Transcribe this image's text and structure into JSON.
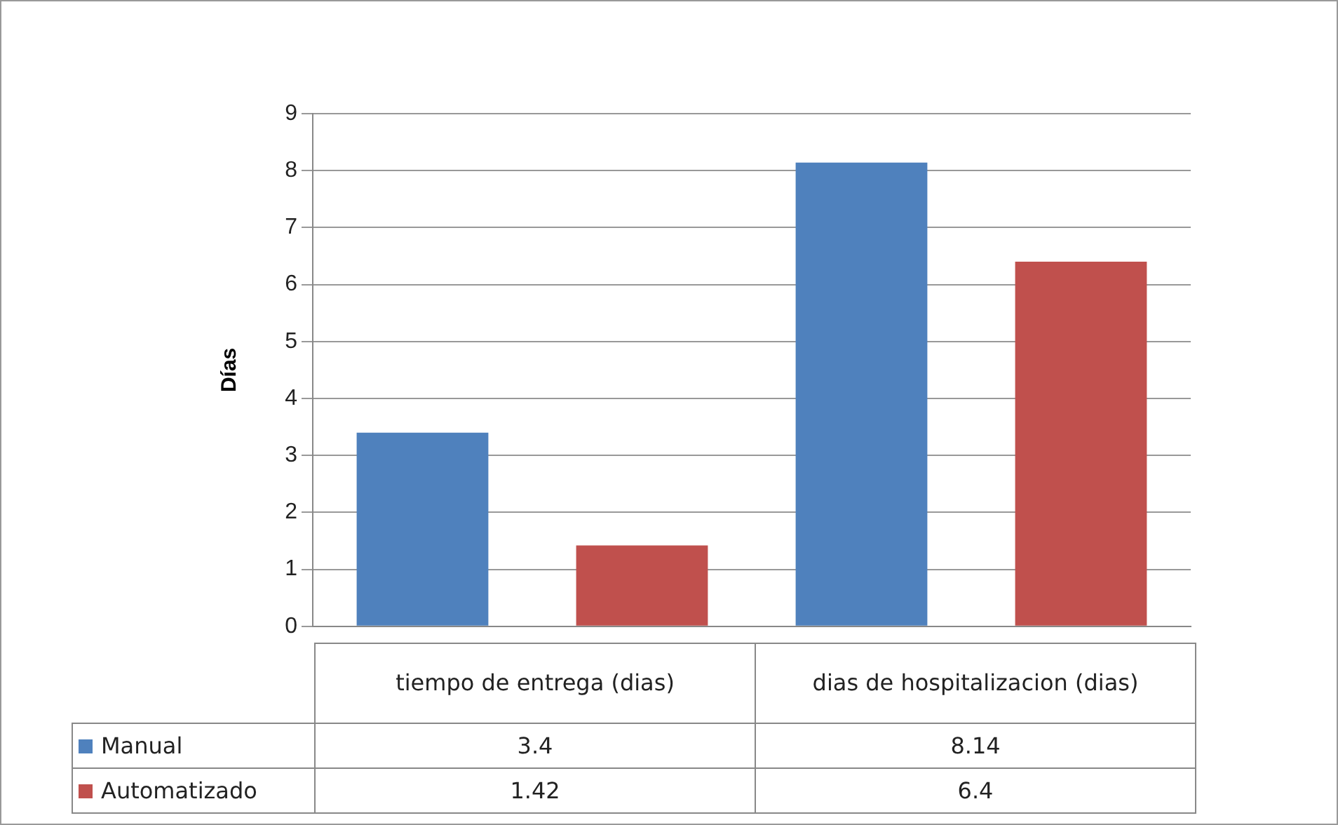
{
  "chart_data": {
    "type": "bar",
    "ylabel": "Días",
    "categories": [
      "tiempo de entrega (dias)",
      "dias de hospitalizacion (dias)"
    ],
    "series": [
      {
        "name": "Manual",
        "color": "#4f81bd",
        "values": [
          3.4,
          8.14
        ]
      },
      {
        "name": "Automatizado",
        "color": "#c0504d",
        "values": [
          1.42,
          6.4
        ]
      }
    ],
    "ylim": [
      0,
      9
    ],
    "yticks": [
      0,
      1,
      2,
      3,
      4,
      5,
      6,
      7,
      8,
      9
    ],
    "grid": "y",
    "legend": "bottom left",
    "data_labels": true
  }
}
